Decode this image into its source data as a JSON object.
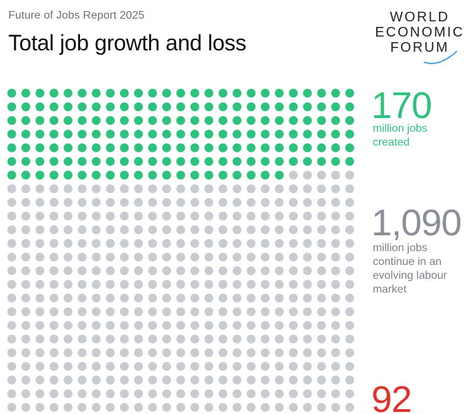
{
  "report_label": "Future of Jobs Report 2025",
  "logo": {
    "line1": "WORLD",
    "line2": "ECONOMIC",
    "line3": "FORUM"
  },
  "colors": {
    "created": "#2ec27e",
    "continue": "#c8ccd1",
    "lost": "#e0322c",
    "continue_text": "#8a8f98"
  },
  "chart_data": {
    "type": "waffle",
    "title": "Total job growth and loss",
    "unit": "million jobs",
    "series": [
      {
        "name": "million jobs created",
        "value": 170
      },
      {
        "name": "million jobs continue in an evolving labour market",
        "value": 1090
      },
      {
        "name": "",
        "value": 92
      }
    ]
  },
  "stats": {
    "created": {
      "number": "170",
      "line1": "million jobs",
      "line2": "created"
    },
    "continue": {
      "number": "1,090",
      "line1": "million jobs",
      "line2": "continue in an",
      "line3": "evolving labour",
      "line4": "market"
    },
    "lost": {
      "number": "92"
    }
  }
}
